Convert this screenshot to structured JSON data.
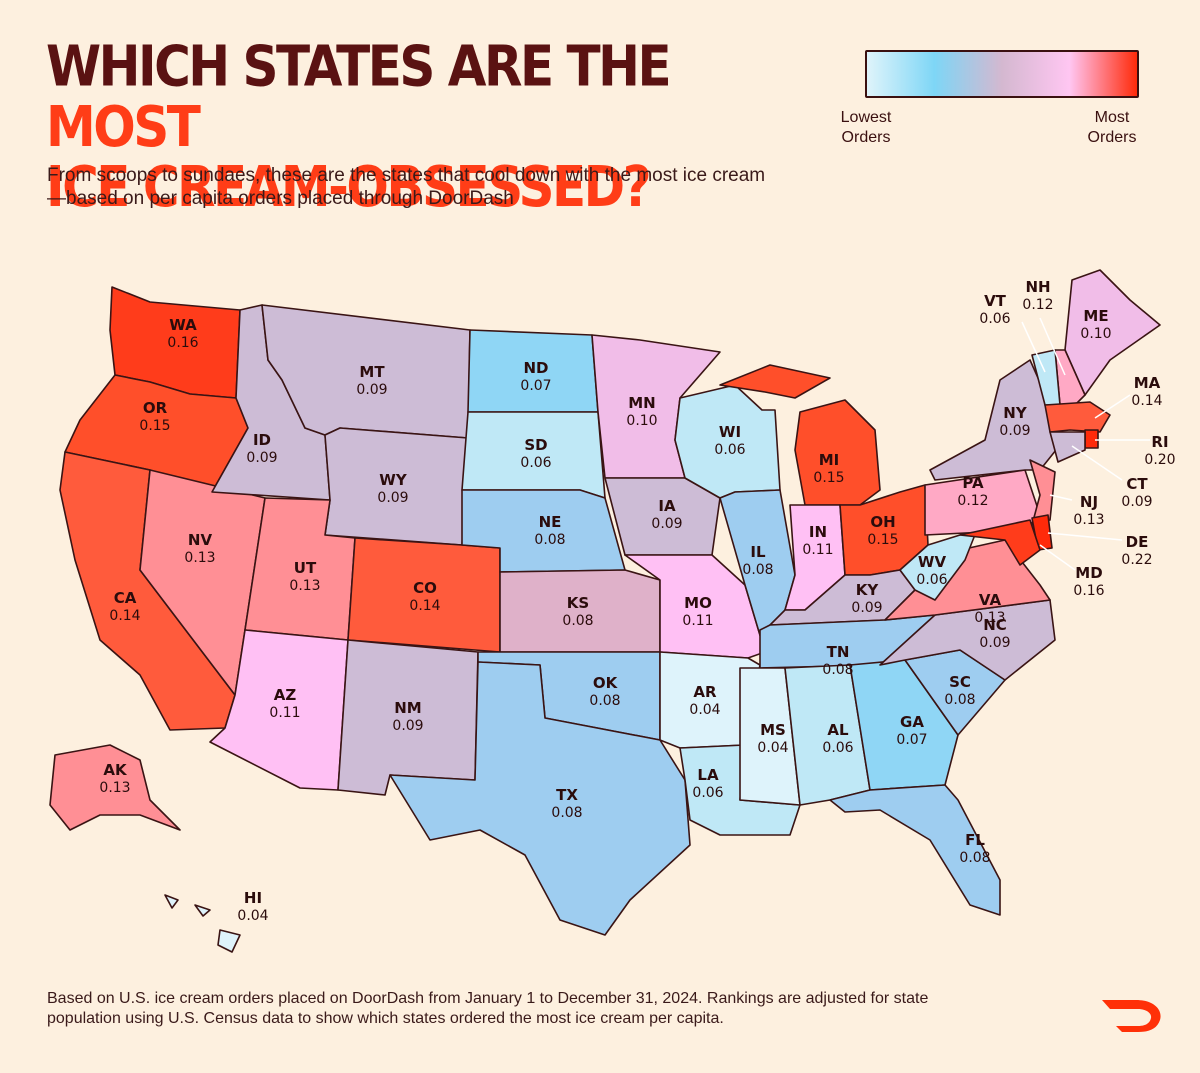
{
  "header": {
    "title_part1": "WHICH STATES ARE THE ",
    "title_highlight": "MOST",
    "title_part2": "ICE CREAM-OBSESSED?",
    "subtitle": "From scoops to sundaes, these are the states that cool down with the most ice cream—based on per capita orders placed through DoorDash"
  },
  "legend": {
    "low_label": "Lowest Orders",
    "high_label": "Most Orders",
    "colors": [
      "#dff4fb",
      "#7ed6f6",
      "#d4b8d0",
      "#ffc6f2",
      "#ff2a0a"
    ]
  },
  "map": {
    "states": [
      {
        "abbr": "WA",
        "value": "0.16",
        "color": "#ff3c1b"
      },
      {
        "abbr": "OR",
        "value": "0.15",
        "color": "#ff4f2a"
      },
      {
        "abbr": "CA",
        "value": "0.14",
        "color": "#ff5b3c"
      },
      {
        "abbr": "NV",
        "value": "0.13",
        "color": "#ff8f95"
      },
      {
        "abbr": "ID",
        "value": "0.09",
        "color": "#cdbcd6"
      },
      {
        "abbr": "MT",
        "value": "0.09",
        "color": "#cdbcd6"
      },
      {
        "abbr": "WY",
        "value": "0.09",
        "color": "#cdbcd6"
      },
      {
        "abbr": "UT",
        "value": "0.13",
        "color": "#ff8f95"
      },
      {
        "abbr": "AZ",
        "value": "0.11",
        "color": "#ffc0f4"
      },
      {
        "abbr": "CO",
        "value": "0.14",
        "color": "#ff5b3c"
      },
      {
        "abbr": "NM",
        "value": "0.09",
        "color": "#cdbcd6"
      },
      {
        "abbr": "ND",
        "value": "0.07",
        "color": "#8fd6f5"
      },
      {
        "abbr": "SD",
        "value": "0.06",
        "color": "#bfe8f6"
      },
      {
        "abbr": "NE",
        "value": "0.08",
        "color": "#9ecdf0"
      },
      {
        "abbr": "KS",
        "value": "0.08",
        "color": "#dfb1c9"
      },
      {
        "abbr": "OK",
        "value": "0.08",
        "color": "#9ecdf0"
      },
      {
        "abbr": "TX",
        "value": "0.08",
        "color": "#9ecdf0"
      },
      {
        "abbr": "MN",
        "value": "0.10",
        "color": "#f1bde8"
      },
      {
        "abbr": "IA",
        "value": "0.09",
        "color": "#cdbcd6"
      },
      {
        "abbr": "MO",
        "value": "0.11",
        "color": "#ffc0f4"
      },
      {
        "abbr": "AR",
        "value": "0.04",
        "color": "#def3fb"
      },
      {
        "abbr": "LA",
        "value": "0.06",
        "color": "#bfe8f6"
      },
      {
        "abbr": "WI",
        "value": "0.06",
        "color": "#bfe8f6"
      },
      {
        "abbr": "IL",
        "value": "0.08",
        "color": "#9ecdf0"
      },
      {
        "abbr": "MI",
        "value": "0.15",
        "color": "#ff4f2a"
      },
      {
        "abbr": "IN",
        "value": "0.11",
        "color": "#ffc0f4"
      },
      {
        "abbr": "OH",
        "value": "0.15",
        "color": "#ff4f2a"
      },
      {
        "abbr": "KY",
        "value": "0.09",
        "color": "#cdbcd6"
      },
      {
        "abbr": "TN",
        "value": "0.08",
        "color": "#9ecdf0"
      },
      {
        "abbr": "MS",
        "value": "0.04",
        "color": "#def3fb"
      },
      {
        "abbr": "AL",
        "value": "0.06",
        "color": "#bfe8f6"
      },
      {
        "abbr": "GA",
        "value": "0.07",
        "color": "#8fd6f5"
      },
      {
        "abbr": "FL",
        "value": "0.08",
        "color": "#9ecdf0"
      },
      {
        "abbr": "SC",
        "value": "0.08",
        "color": "#9ecdf0"
      },
      {
        "abbr": "NC",
        "value": "0.09",
        "color": "#cdbcd6"
      },
      {
        "abbr": "VA",
        "value": "0.13",
        "color": "#ff8f95"
      },
      {
        "abbr": "WV",
        "value": "0.06",
        "color": "#bfe8f6"
      },
      {
        "abbr": "PA",
        "value": "0.12",
        "color": "#ffa9c5"
      },
      {
        "abbr": "NY",
        "value": "0.09",
        "color": "#cdbcd6"
      },
      {
        "abbr": "ME",
        "value": "0.10",
        "color": "#f1bde8"
      },
      {
        "abbr": "NH",
        "value": "0.12",
        "color": "#ffa9c5"
      },
      {
        "abbr": "VT",
        "value": "0.06",
        "color": "#bfe8f6"
      },
      {
        "abbr": "MA",
        "value": "0.14",
        "color": "#ff5b3c"
      },
      {
        "abbr": "RI",
        "value": "0.20",
        "color": "#ff2a0a"
      },
      {
        "abbr": "CT",
        "value": "0.09",
        "color": "#cdbcd6"
      },
      {
        "abbr": "NJ",
        "value": "0.13",
        "color": "#ff8f95"
      },
      {
        "abbr": "DE",
        "value": "0.22",
        "color": "#ff2a0a"
      },
      {
        "abbr": "MD",
        "value": "0.16",
        "color": "#ff3c1b"
      },
      {
        "abbr": "AK",
        "value": "0.13",
        "color": "#ff8f95"
      },
      {
        "abbr": "HI",
        "value": "0.04",
        "color": "#def3fb"
      }
    ]
  },
  "footnote": "Based on U.S. ice cream orders placed on DoorDash from January 1 to December 31, 2024. Rankings are adjusted for state population using U.S. Census data to show which states ordered the most ice cream per capita.",
  "brand": {
    "logo": "doordash-logo",
    "color": "#ff3008"
  }
}
